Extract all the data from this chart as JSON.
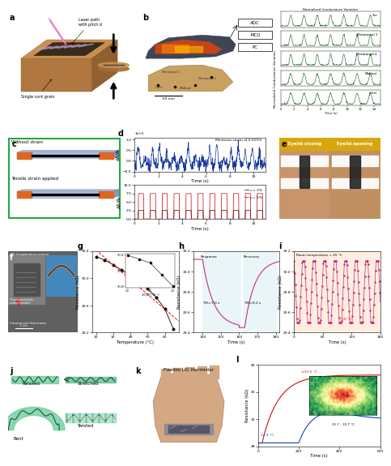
{
  "panel_labels": [
    "a",
    "b",
    "c",
    "d",
    "e",
    "f",
    "g",
    "h",
    "i",
    "j",
    "k",
    "l"
  ],
  "panel_g": {
    "temperature": [
      20,
      25,
      30,
      35,
      40,
      45,
      50,
      55,
      60,
      65
    ],
    "resistance": [
      30.32,
      30.27,
      30.2,
      30.12,
      30.04,
      29.95,
      29.85,
      29.72,
      29.55,
      29.25
    ],
    "ylabel": "Resistance (kΩ)",
    "xlabel": "Temperature (°C)",
    "inset_x": [
      3.0,
      3.1,
      3.2,
      3.3,
      3.4
    ],
    "inset_y": [
      10.32,
      10.315,
      10.31,
      10.295,
      10.28
    ],
    "ylim": [
      29.2,
      30.4
    ],
    "xlim": [
      18,
      68
    ],
    "yticks": [
      29.2,
      29.6,
      30.0,
      30.4
    ]
  },
  "panel_h": {
    "ylabel": "Resistance (kΩ)",
    "xlabel": "Time (s)",
    "ylim": [
      29.4,
      30.2
    ],
    "xlim": [
      135,
      180
    ],
    "yticks": [
      29.4,
      29.6,
      29.8,
      30.0,
      30.2
    ],
    "xticks": [
      140,
      150,
      160,
      170,
      180
    ]
  },
  "panel_i": {
    "ylabel": "Resistance (kΩ)",
    "xlabel": "Time (s)",
    "ylim": [
      29.4,
      30.2
    ],
    "xlim": [
      0,
      180
    ],
    "yticks": [
      29.4,
      29.6,
      29.8,
      30.0,
      30.2
    ],
    "xticks": [
      0,
      60,
      120,
      180
    ]
  },
  "panel_l": {
    "ylabel": "Resistance (kΩ)",
    "xlabel": "Time (s)",
    "ylim": [
      28,
      40
    ],
    "xlim": [
      0,
      600
    ],
    "yticks": [
      28,
      32,
      36,
      40
    ],
    "xticks": [
      0,
      200,
      400,
      600
    ]
  },
  "gait_labels": [
    "Toe",
    "Metatarsal 1",
    "Metatarsal 2",
    "Midfoot",
    "Heel"
  ],
  "colors": {
    "blue_line": "#1a3a9e",
    "pink_line": "#c03080",
    "green_signal": "#1a5c1a",
    "cork_top": "#c8914a",
    "cork_side": "#a06830",
    "cork_dark": "#7a4820",
    "laser_pink": "#e060c0",
    "sensor_blue": "#8899cc",
    "sensor_orange": "#dd6622",
    "green_border": "#22aa44",
    "light_blue": "#b8d8f8",
    "light_orange": "#ffd8b0",
    "teal_fill": "#66ccaa",
    "dark_teal": "#226644"
  }
}
